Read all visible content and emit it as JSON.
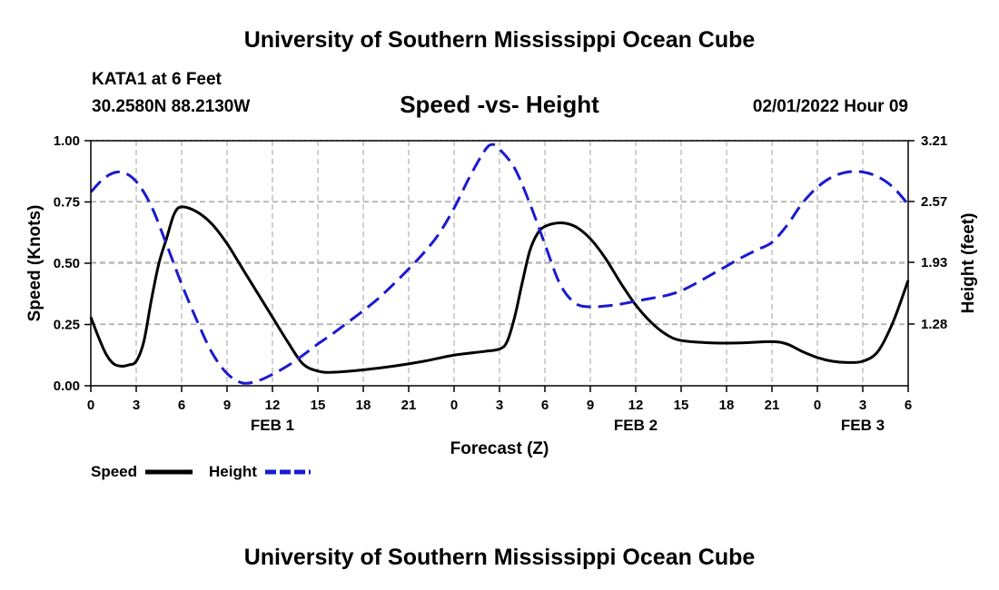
{
  "header": {
    "title_top": "University of Southern Mississippi Ocean Cube",
    "station": "KATA1 at 6 Feet",
    "coords": "30.2580N  88.2130W",
    "subtitle": "Speed -vs- Height",
    "datestamp": "02/01/2022 Hour 09",
    "title_bottom": "University of Southern Mississippi Ocean Cube"
  },
  "colors": {
    "speed": "#000000",
    "height": "#1a1ad0",
    "grid": "#b0b0b0"
  },
  "chart_data": {
    "type": "line",
    "title": "Speed -vs- Height",
    "xlabel": "Forecast (Z)",
    "ylabel_left": "Speed (Knots)",
    "ylabel_right": "Height (feet)",
    "x_range_hours": [
      0,
      54
    ],
    "x_ticks": [
      {
        "h": 0,
        "label": "0"
      },
      {
        "h": 3,
        "label": "3"
      },
      {
        "h": 6,
        "label": "6"
      },
      {
        "h": 9,
        "label": "9"
      },
      {
        "h": 12,
        "label": "12"
      },
      {
        "h": 15,
        "label": "15"
      },
      {
        "h": 18,
        "label": "18"
      },
      {
        "h": 21,
        "label": "21"
      },
      {
        "h": 24,
        "label": "0"
      },
      {
        "h": 27,
        "label": "3"
      },
      {
        "h": 30,
        "label": "6"
      },
      {
        "h": 33,
        "label": "9"
      },
      {
        "h": 36,
        "label": "12"
      },
      {
        "h": 39,
        "label": "15"
      },
      {
        "h": 42,
        "label": "18"
      },
      {
        "h": 45,
        "label": "21"
      },
      {
        "h": 48,
        "label": "0"
      },
      {
        "h": 51,
        "label": "3"
      },
      {
        "h": 54,
        "label": "6"
      }
    ],
    "date_labels": [
      {
        "h": 12,
        "label": "FEB 1"
      },
      {
        "h": 36,
        "label": "FEB 2"
      },
      {
        "h": 51,
        "label": "FEB 3"
      }
    ],
    "y_left": {
      "min": 0,
      "max": 1.0,
      "ticks": [
        {
          "v": 0,
          "label": "0.00"
        },
        {
          "v": 0.25,
          "label": "0.25"
        },
        {
          "v": 0.5,
          "label": "0.50"
        },
        {
          "v": 0.75,
          "label": "0.75"
        },
        {
          "v": 1.0,
          "label": "1.00"
        }
      ]
    },
    "y_right": {
      "min": 0.63,
      "max": 3.21,
      "ticks": [
        {
          "v": 1.28,
          "label": "1.28"
        },
        {
          "v": 1.93,
          "label": "1.93"
        },
        {
          "v": 2.57,
          "label": "2.57"
        },
        {
          "v": 3.21,
          "label": "3.21"
        }
      ]
    },
    "series": [
      {
        "name": "Speed",
        "axis": "left",
        "style": "solid",
        "points": [
          [
            0,
            0.28
          ],
          [
            0.5,
            0.2
          ],
          [
            1,
            0.13
          ],
          [
            1.5,
            0.09
          ],
          [
            2,
            0.08
          ],
          [
            2.5,
            0.085
          ],
          [
            3,
            0.1
          ],
          [
            3.5,
            0.18
          ],
          [
            4,
            0.35
          ],
          [
            4.5,
            0.5
          ],
          [
            5,
            0.6
          ],
          [
            5.5,
            0.7
          ],
          [
            6,
            0.73
          ],
          [
            7,
            0.71
          ],
          [
            8,
            0.66
          ],
          [
            9,
            0.58
          ],
          [
            10,
            0.48
          ],
          [
            11,
            0.38
          ],
          [
            12,
            0.28
          ],
          [
            13,
            0.18
          ],
          [
            14,
            0.09
          ],
          [
            15,
            0.06
          ],
          [
            16,
            0.055
          ],
          [
            18,
            0.065
          ],
          [
            20,
            0.08
          ],
          [
            22,
            0.1
          ],
          [
            24,
            0.125
          ],
          [
            26,
            0.14
          ],
          [
            27,
            0.15
          ],
          [
            27.5,
            0.18
          ],
          [
            28,
            0.28
          ],
          [
            28.5,
            0.42
          ],
          [
            29,
            0.55
          ],
          [
            29.5,
            0.62
          ],
          [
            30,
            0.65
          ],
          [
            31,
            0.665
          ],
          [
            32,
            0.65
          ],
          [
            33,
            0.6
          ],
          [
            34,
            0.52
          ],
          [
            35,
            0.42
          ],
          [
            36,
            0.33
          ],
          [
            37,
            0.26
          ],
          [
            38,
            0.21
          ],
          [
            39,
            0.185
          ],
          [
            41,
            0.175
          ],
          [
            43,
            0.175
          ],
          [
            45,
            0.18
          ],
          [
            46,
            0.17
          ],
          [
            47,
            0.14
          ],
          [
            48,
            0.115
          ],
          [
            49,
            0.1
          ],
          [
            50,
            0.095
          ],
          [
            51,
            0.1
          ],
          [
            52,
            0.14
          ],
          [
            53,
            0.26
          ],
          [
            54,
            0.43
          ]
        ]
      },
      {
        "name": "Height",
        "axis": "right",
        "style": "dashed",
        "points": [
          [
            0,
            2.67
          ],
          [
            1,
            2.83
          ],
          [
            2,
            2.88
          ],
          [
            3,
            2.78
          ],
          [
            4,
            2.52
          ],
          [
            5,
            2.12
          ],
          [
            6,
            1.7
          ],
          [
            7,
            1.32
          ],
          [
            8,
            0.98
          ],
          [
            9,
            0.76
          ],
          [
            10,
            0.66
          ],
          [
            11,
            0.68
          ],
          [
            12,
            0.75
          ],
          [
            13,
            0.84
          ],
          [
            14,
            0.95
          ],
          [
            15,
            1.07
          ],
          [
            16,
            1.18
          ],
          [
            17,
            1.3
          ],
          [
            18,
            1.42
          ],
          [
            19,
            1.55
          ],
          [
            20,
            1.7
          ],
          [
            21,
            1.86
          ],
          [
            22,
            2.03
          ],
          [
            23,
            2.23
          ],
          [
            24,
            2.5
          ],
          [
            25,
            2.82
          ],
          [
            26,
            3.1
          ],
          [
            26.5,
            3.17
          ],
          [
            27,
            3.12
          ],
          [
            28,
            2.92
          ],
          [
            29,
            2.55
          ],
          [
            30,
            2.12
          ],
          [
            31,
            1.7
          ],
          [
            32,
            1.5
          ],
          [
            33,
            1.46
          ],
          [
            34,
            1.47
          ],
          [
            35,
            1.49
          ],
          [
            36,
            1.52
          ],
          [
            37,
            1.55
          ],
          [
            38,
            1.58
          ],
          [
            39,
            1.63
          ],
          [
            40,
            1.71
          ],
          [
            41,
            1.8
          ],
          [
            42,
            1.89
          ],
          [
            43,
            1.98
          ],
          [
            44,
            2.06
          ],
          [
            45,
            2.14
          ],
          [
            46,
            2.32
          ],
          [
            47,
            2.55
          ],
          [
            48,
            2.72
          ],
          [
            49,
            2.83
          ],
          [
            50,
            2.88
          ],
          [
            51,
            2.88
          ],
          [
            52,
            2.83
          ],
          [
            53,
            2.72
          ],
          [
            54,
            2.54
          ]
        ]
      }
    ],
    "legend": [
      {
        "label": "Speed",
        "style": "solid"
      },
      {
        "label": "Height",
        "style": "dashed"
      }
    ]
  }
}
